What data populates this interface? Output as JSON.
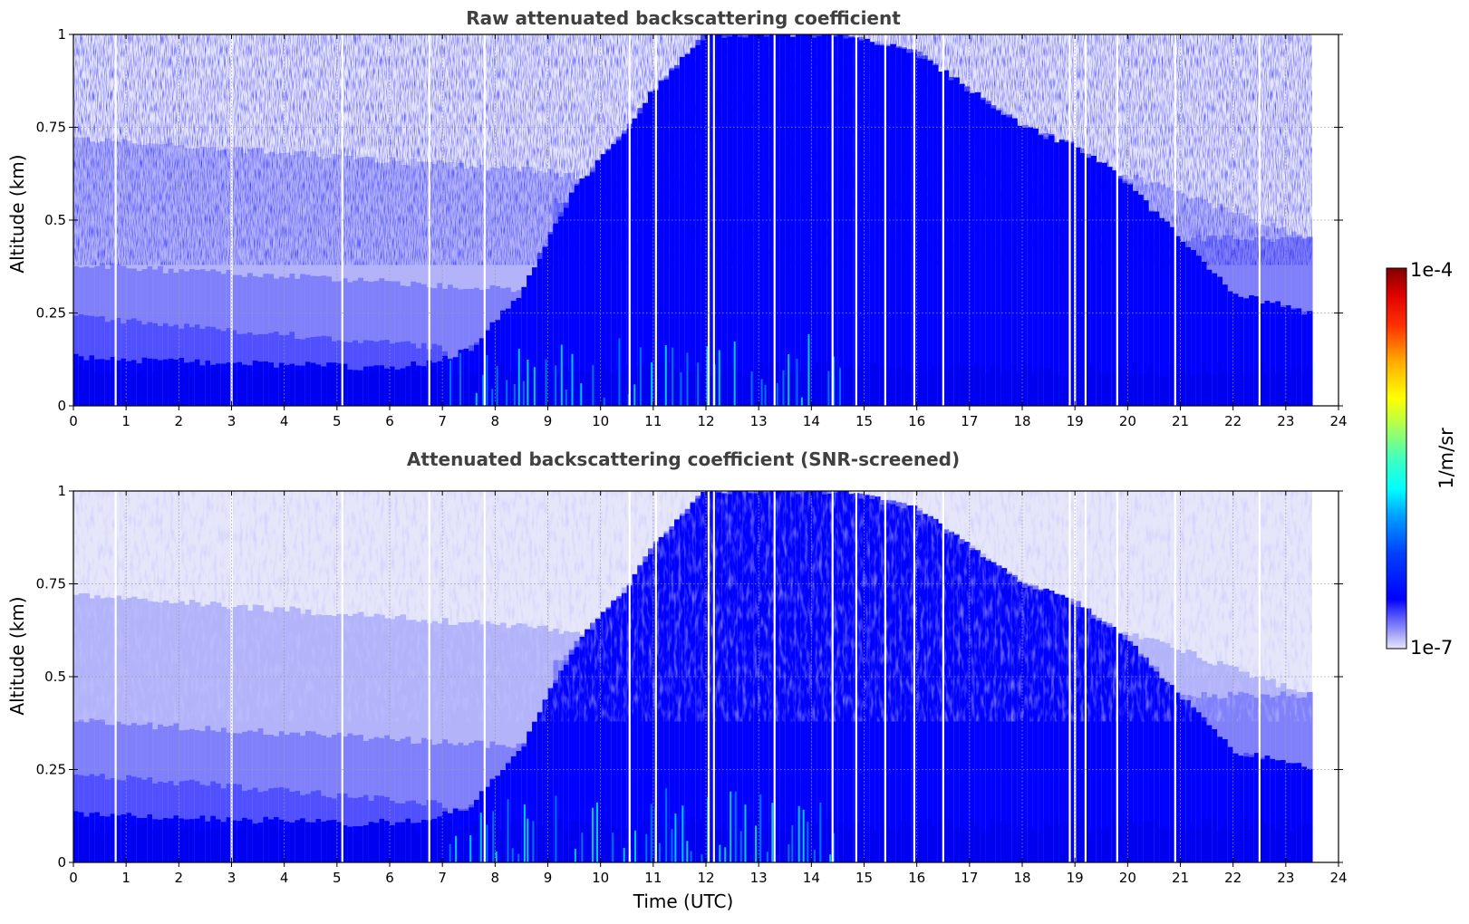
{
  "chart_data": [
    {
      "type": "heatmap",
      "title": "Raw attenuated backscattering coefficient",
      "xlabel": "",
      "ylabel": "Altitude (km)",
      "xlim": [
        0,
        24
      ],
      "ylim": [
        0,
        1
      ],
      "x_ticks": [
        "0",
        "1",
        "2",
        "3",
        "4",
        "5",
        "6",
        "7",
        "8",
        "9",
        "10",
        "11",
        "12",
        "13",
        "14",
        "15",
        "16",
        "17",
        "18",
        "19",
        "20",
        "21",
        "22",
        "23",
        "24"
      ],
      "y_ticks": [
        "0",
        "0.25",
        "0.5",
        "0.75",
        "1"
      ],
      "grid": true,
      "data_end_time": 23.5,
      "gap_times": [
        0.8,
        3.0,
        5.1,
        6.75,
        7.8,
        10.55,
        11.05,
        12.05,
        12.15,
        13.3,
        14.4,
        14.85,
        15.4,
        15.95,
        16.5,
        18.9,
        19.0,
        19.2,
        19.8,
        20.9,
        22.5
      ],
      "dense_dust_layer": {
        "top_profile_hours": [
          0,
          6.5,
          7.5,
          8.5,
          9,
          9.5,
          10,
          10.5,
          11,
          12,
          14.5,
          16,
          17,
          18,
          19,
          20,
          21,
          22,
          23.5
        ],
        "top_profile_km": [
          0.13,
          0.1,
          0.15,
          0.3,
          0.45,
          0.58,
          0.66,
          0.74,
          0.85,
          1.0,
          1.0,
          0.95,
          0.85,
          0.75,
          0.7,
          0.6,
          0.45,
          0.3,
          0.25
        ]
      }
    },
    {
      "type": "heatmap",
      "title": "Attenuated backscattering coefficient (SNR-screened)",
      "xlabel": "Time (UTC)",
      "ylabel": "Altitude (km)",
      "xlim": [
        0,
        24
      ],
      "ylim": [
        0,
        1
      ],
      "x_ticks": [
        "0",
        "1",
        "2",
        "3",
        "4",
        "5",
        "6",
        "7",
        "8",
        "9",
        "10",
        "11",
        "12",
        "13",
        "14",
        "15",
        "16",
        "17",
        "18",
        "19",
        "20",
        "21",
        "22",
        "23",
        "24"
      ],
      "y_ticks": [
        "0",
        "0.25",
        "0.5",
        "0.75",
        "1"
      ],
      "grid": true,
      "data_end_time": 23.5,
      "gap_times": [
        0.8,
        3.0,
        5.1,
        6.75,
        7.8,
        10.55,
        11.05,
        12.05,
        12.15,
        13.3,
        14.4,
        14.85,
        15.4,
        15.95,
        16.5,
        18.9,
        19.0,
        19.2,
        19.8,
        20.9,
        22.5
      ]
    }
  ],
  "colorbar": {
    "label": "1/m/sr",
    "max_label": "1e-4",
    "min_label": "1e-7",
    "colormap": "jet",
    "levels": 30
  },
  "colors": {
    "lowest": "#e6e6fa",
    "blue": "#0000ff",
    "background": "#ffffff"
  }
}
